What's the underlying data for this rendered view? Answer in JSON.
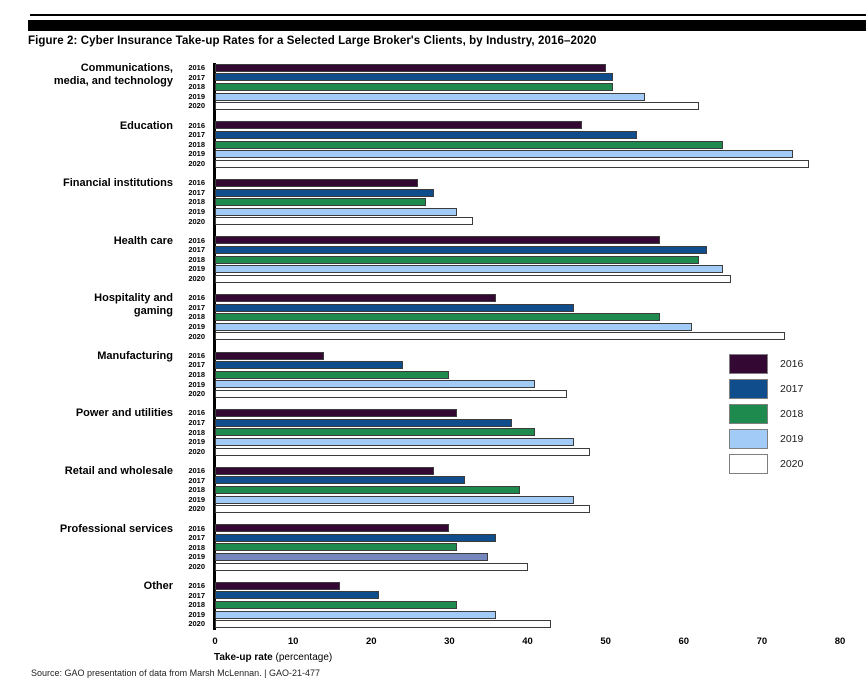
{
  "title": "Figure 2: Cyber Insurance Take-up Rates for a Selected Large Broker's Clients, by Industry, 2016–2020",
  "source": "Source: GAO presentation of data from Marsh McLennan.  |  GAO-21-477",
  "chart_data": {
    "type": "bar",
    "orientation": "horizontal",
    "title": "Figure 2: Cyber Insurance Take-up Rates for a Selected Large Broker's Clients, by Industry, 2016–2020",
    "xlabel_bold": "Take-up rate",
    "xlabel_suffix": " (percentage)",
    "xlim": [
      0,
      80
    ],
    "x_ticks": [
      0,
      10,
      20,
      30,
      40,
      50,
      60,
      70,
      80
    ],
    "grid": false,
    "legend_position": "right",
    "years": [
      "2016",
      "2017",
      "2018",
      "2019",
      "2020"
    ],
    "year_colors": {
      "2016": "#330833",
      "2017": "#0f4d8c",
      "2018": "#1f8a4d",
      "2019": "#a3cbf8",
      "2020": "#ffffff"
    },
    "bar_border_color": "#3c3c3c",
    "industries": [
      {
        "name": "Communications, media, and technology",
        "label_lines": [
          "Communications,",
          "media, and technology"
        ],
        "values": [
          50,
          51,
          51,
          55,
          62
        ]
      },
      {
        "name": "Education",
        "label_lines": [
          "Education"
        ],
        "values": [
          47,
          54,
          65,
          74,
          76
        ]
      },
      {
        "name": "Financial institutions",
        "label_lines": [
          "Financial institutions"
        ],
        "values": [
          26,
          28,
          27,
          31,
          33
        ]
      },
      {
        "name": "Health care",
        "label_lines": [
          "Health care"
        ],
        "values": [
          57,
          63,
          62,
          65,
          66
        ]
      },
      {
        "name": "Hospitality and gaming",
        "label_lines": [
          "Hospitality and",
          "gaming"
        ],
        "values": [
          36,
          46,
          57,
          61,
          73
        ]
      },
      {
        "name": "Manufacturing",
        "label_lines": [
          "Manufacturing"
        ],
        "values": [
          14,
          24,
          30,
          41,
          45
        ]
      },
      {
        "name": "Power and utilities",
        "label_lines": [
          "Power and utilities"
        ],
        "values": [
          31,
          38,
          41,
          46,
          48
        ]
      },
      {
        "name": "Retail and wholesale",
        "label_lines": [
          "Retail and wholesale"
        ],
        "values": [
          28,
          32,
          39,
          46,
          48
        ]
      },
      {
        "name": "Professional services",
        "label_lines": [
          "Professional services"
        ],
        "values": [
          30,
          36,
          31,
          35,
          40
        ],
        "color_overrides": {
          "2019": "#7587bd"
        }
      },
      {
        "name": "Other",
        "label_lines": [
          "Other"
        ],
        "values": [
          16,
          21,
          31,
          36,
          43
        ]
      }
    ],
    "legend": [
      {
        "label": "2016",
        "color": "#330833"
      },
      {
        "label": "2017",
        "color": "#0f4d8c"
      },
      {
        "label": "2018",
        "color": "#1f8a4d"
      },
      {
        "label": "2019",
        "color": "#a3cbf8"
      },
      {
        "label": "2020",
        "color": "#ffffff"
      }
    ]
  }
}
